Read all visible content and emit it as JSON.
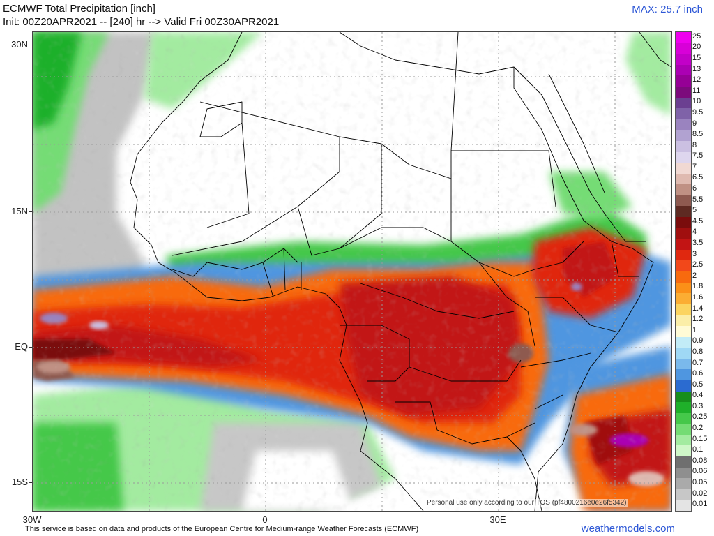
{
  "header": {
    "title_line1": "ECMWF Total Precipitation [inch]",
    "title_line2": "Init: 00Z20APR2021 -- [240] hr --> Valid Fri 00Z30APR2021",
    "max_label": "MAX: 25.7 inch"
  },
  "map": {
    "lat_labels": [
      "30N",
      "15N",
      "EQ",
      "15S"
    ],
    "lon_labels": [
      "30W",
      "0",
      "30E"
    ],
    "watermark": "Personal use only according to our TOS (pf4800216e0e26f5342)",
    "footer": "This service is based on data and products of the European Centre for Medium-range Weather Forecasts (ECMWF)",
    "brand": "weathermodels.com",
    "colors": {
      "ocean_rain_band": "#e03a12",
      "dry_land": "#ffffff",
      "border_line": "#000000",
      "grid_line": "#9a9a9a"
    }
  },
  "colorbar": {
    "unit": "inch",
    "levels": [
      {
        "label": "25",
        "color": "#ee00ee"
      },
      {
        "label": "20",
        "color": "#d800d8"
      },
      {
        "label": "15",
        "color": "#c200c8"
      },
      {
        "label": "13",
        "color": "#ab00b3"
      },
      {
        "label": "12",
        "color": "#960096"
      },
      {
        "label": "11",
        "color": "#7c0a7c"
      },
      {
        "label": "10",
        "color": "#6b3f91"
      },
      {
        "label": "9.5",
        "color": "#7f62a8"
      },
      {
        "label": "9",
        "color": "#9a83bf"
      },
      {
        "label": "8.5",
        "color": "#b1a2d1"
      },
      {
        "label": "8",
        "color": "#cbc0e2"
      },
      {
        "label": "7.5",
        "color": "#ded6ee"
      },
      {
        "label": "7",
        "color": "#f1d9d3"
      },
      {
        "label": "6.5",
        "color": "#dfbab0"
      },
      {
        "label": "6",
        "color": "#c09184"
      },
      {
        "label": "5.5",
        "color": "#8e5a50"
      },
      {
        "label": "5",
        "color": "#5e2a22"
      },
      {
        "label": "4.5",
        "color": "#7a0c0c"
      },
      {
        "label": "4",
        "color": "#a00f0f"
      },
      {
        "label": "3.5",
        "color": "#c21414"
      },
      {
        "label": "3",
        "color": "#e0280f"
      },
      {
        "label": "2.5",
        "color": "#f2481a"
      },
      {
        "label": "2",
        "color": "#f86a0e"
      },
      {
        "label": "1.8",
        "color": "#fb9018"
      },
      {
        "label": "1.6",
        "color": "#fbad33"
      },
      {
        "label": "1.4",
        "color": "#fbd460"
      },
      {
        "label": "1.2",
        "color": "#fbeea8"
      },
      {
        "label": "1",
        "color": "#fffbd6"
      },
      {
        "label": "0.9",
        "color": "#c2ecf7"
      },
      {
        "label": "0.8",
        "color": "#9fd8f5"
      },
      {
        "label": "0.7",
        "color": "#7ab9ec"
      },
      {
        "label": "0.6",
        "color": "#4f96e0"
      },
      {
        "label": "0.5",
        "color": "#2b6bd0"
      },
      {
        "label": "0.4",
        "color": "#178e1c"
      },
      {
        "label": "0.3",
        "color": "#1fb02a"
      },
      {
        "label": "0.25",
        "color": "#45c84a"
      },
      {
        "label": "0.2",
        "color": "#74dc74"
      },
      {
        "label": "0.15",
        "color": "#a3eba0"
      },
      {
        "label": "0.1",
        "color": "#cff7c8"
      },
      {
        "label": "0.08",
        "color": "#6f6f6f"
      },
      {
        "label": "0.06",
        "color": "#8f8f8f"
      },
      {
        "label": "0.05",
        "color": "#aaaaaa"
      },
      {
        "label": "0.02",
        "color": "#c7c7c7"
      },
      {
        "label": "0.01",
        "color": "#e4e4e4"
      }
    ]
  }
}
